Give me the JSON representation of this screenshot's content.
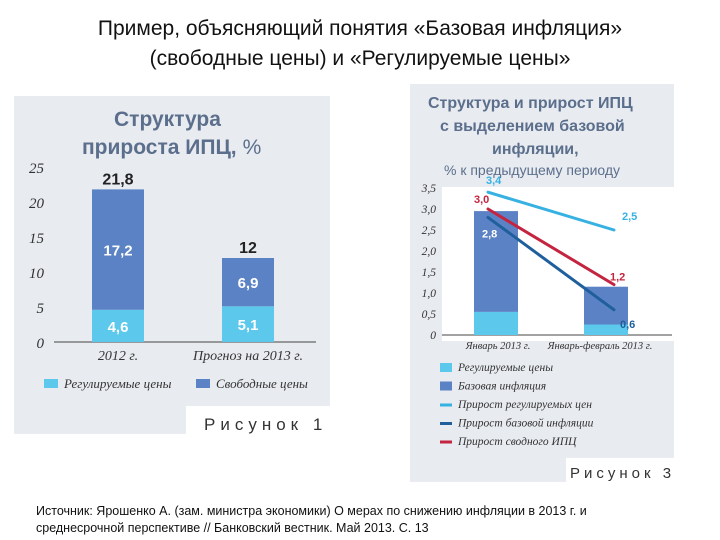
{
  "slide": {
    "title_line1": "Пример, объясняющий понятия «Базовая инфляция»",
    "title_line2": "(свободные цены) и «Регулируемые цены»",
    "source_line1": "Источник: Ярошенко А. (зам. министра экономики) О мерах по снижению инфляции в 2013 г. и",
    "source_line2": "среднесрочной перспективе // Банковский вестник. Май 2013. С. 13"
  },
  "colors": {
    "regulated": "#5bc8ec",
    "free": "#5b82c4",
    "line_regulated": "#36b1e2",
    "line_base": "#1f5f9c",
    "line_total": "#c3243f",
    "panel": "#e8ebf0",
    "title_blue": "#5b6f8c"
  },
  "chart_data": [
    {
      "type": "bar",
      "stacked": true,
      "title_line1": "Структура",
      "title_line2": "прироста ИПЦ,",
      "title_unit": "%",
      "categories": [
        "2012 г.",
        "Прогноз на 2013 г."
      ],
      "series": [
        {
          "name": "Регулируемые цены",
          "values": [
            4.6,
            5.1
          ]
        },
        {
          "name": "Свободные цены",
          "values": [
            17.2,
            6.9
          ]
        }
      ],
      "totals": [
        21.8,
        12
      ],
      "total_labels": [
        "21,8",
        "12"
      ],
      "value_labels": {
        "regulated": [
          "4,6",
          "5,1"
        ],
        "free": [
          "17,2",
          "6,9"
        ]
      },
      "ylim": [
        0,
        25
      ],
      "yticks": [
        0,
        5,
        10,
        15,
        20,
        25
      ],
      "ytick_labels": [
        "0",
        "5",
        "10",
        "15",
        "20",
        "25"
      ],
      "legend": [
        "Регулируемые цены",
        "Свободные цены"
      ],
      "legend_position": "bottom",
      "caption": "Рисунок 1"
    },
    {
      "type": "bar+line",
      "title_line1": "Структура и прирост ИПЦ",
      "title_line2": "с выделением базовой",
      "title_line3": "инфляции,",
      "title_line4": "% к предыдущему периоду",
      "categories": [
        "Январь 2013 г.",
        "Январь-февраль 2013 г."
      ],
      "bars": [
        {
          "name": "Регулируемые цены",
          "values": [
            0.55,
            0.25
          ]
        },
        {
          "name": "Базовая инфляция",
          "values": [
            2.4,
            0.9
          ]
        }
      ],
      "bar_totals": [
        2.95,
        1.15
      ],
      "lines": [
        {
          "name": "Прирост регулируемых цен",
          "values": [
            3.4,
            2.5
          ],
          "labels": [
            "3,4",
            "2,5"
          ]
        },
        {
          "name": "Прирост базовой инфляции",
          "values": [
            2.8,
            0.6
          ],
          "labels": [
            "2,8",
            "0,6"
          ]
        },
        {
          "name": "Прирост сводного ИПЦ",
          "values": [
            3.0,
            1.2
          ],
          "labels": [
            "3,0",
            "1,2"
          ]
        }
      ],
      "ylim": [
        0,
        3.5
      ],
      "yticks": [
        0,
        0.5,
        1.0,
        1.5,
        2.0,
        2.5,
        3.0,
        3.5
      ],
      "ytick_labels": [
        "0",
        "0,5",
        "1,0",
        "1,5",
        "2,0",
        "2,5",
        "3,0",
        "3,5"
      ],
      "legend": [
        "Регулируемые цены",
        "Базовая инфляция",
        "Прирост регулируемых цен",
        "Прирост базовой инфляции",
        "Прирост сводного ИПЦ"
      ],
      "legend_position": "bottom",
      "caption": "Рисунок 3"
    }
  ]
}
